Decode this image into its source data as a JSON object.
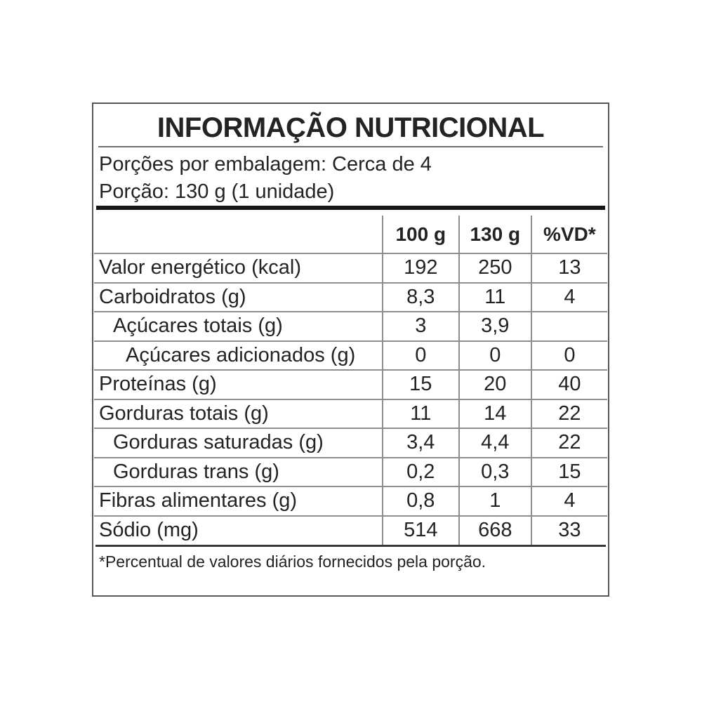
{
  "colors": {
    "text": "#232323",
    "grid": "#8e8e91",
    "heavy_rule": "#161616",
    "box_border": "#55565a",
    "footnote_rule": "#39393b"
  },
  "header": {
    "title": "INFORMAÇÃO NUTRICIONAL",
    "servings_per_package": "Porções por embalagem: Cerca de 4",
    "serving_size": "Porção: 130 g (1 unidade)"
  },
  "table": {
    "columns": [
      "100 g",
      "130 g",
      "%VD*"
    ],
    "rows": [
      {
        "name": "Valor energético (kcal)",
        "indent": 0,
        "per100": "192",
        "per130": "250",
        "vd": "13"
      },
      {
        "name": "Carboidratos (g)",
        "indent": 0,
        "per100": "8,3",
        "per130": "11",
        "vd": "4"
      },
      {
        "name": "Açúcares totais (g)",
        "indent": 1,
        "per100": "3",
        "per130": "3,9",
        "vd": ""
      },
      {
        "name": "Açúcares adicionados (g)",
        "indent": 2,
        "per100": "0",
        "per130": "0",
        "vd": "0"
      },
      {
        "name": "Proteínas (g)",
        "indent": 0,
        "per100": "15",
        "per130": "20",
        "vd": "40"
      },
      {
        "name": "Gorduras totais (g)",
        "indent": 0,
        "per100": "11",
        "per130": "14",
        "vd": "22"
      },
      {
        "name": "Gorduras saturadas (g)",
        "indent": 1,
        "per100": "3,4",
        "per130": "4,4",
        "vd": "22"
      },
      {
        "name": "Gorduras trans (g)",
        "indent": 1,
        "per100": "0,2",
        "per130": "0,3",
        "vd": "15"
      },
      {
        "name": "Fibras alimentares (g)",
        "indent": 0,
        "per100": "0,8",
        "per130": "1",
        "vd": "4"
      },
      {
        "name": "Sódio (mg)",
        "indent": 0,
        "per100": "514",
        "per130": "668",
        "vd": "33"
      }
    ]
  },
  "footnote": "*Percentual de valores diários fornecidos pela porção."
}
